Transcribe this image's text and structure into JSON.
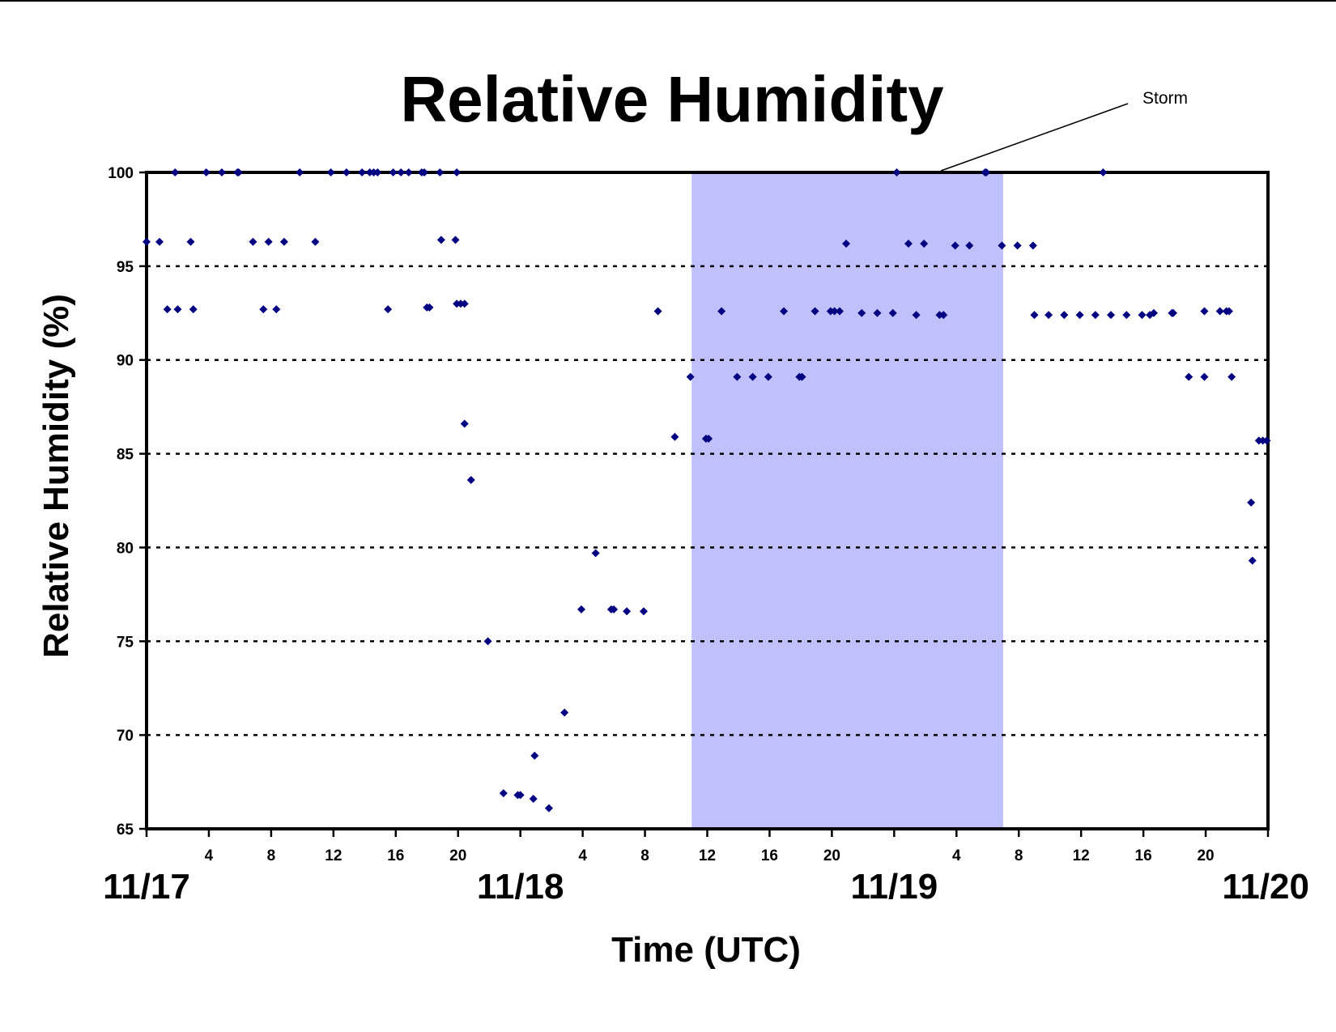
{
  "chart_data": {
    "type": "scatter",
    "title": "Relative Humidity",
    "xlabel": "Time (UTC)",
    "ylabel": "Relative Humidity (%)",
    "xlim": [
      "11/17 00:00",
      "11/20 00:00"
    ],
    "ylim": [
      65,
      100
    ],
    "yticks": [
      65,
      70,
      75,
      80,
      85,
      90,
      95,
      100
    ],
    "grid": "horizontal dotted at 70, 75, 80, 85, 90, 95",
    "x_hour_ticks": [
      {
        "x": "11/17 04:00",
        "label": "4"
      },
      {
        "x": "11/17 08:00",
        "label": "8"
      },
      {
        "x": "11/17 12:00",
        "label": "12"
      },
      {
        "x": "11/17 16:00",
        "label": "16"
      },
      {
        "x": "11/17 20:00",
        "label": "20"
      },
      {
        "x": "11/18 04:00",
        "label": "4"
      },
      {
        "x": "11/18 08:00",
        "label": "8"
      },
      {
        "x": "11/18 12:00",
        "label": "12"
      },
      {
        "x": "11/18 16:00",
        "label": "16"
      },
      {
        "x": "11/18 20:00",
        "label": "20"
      },
      {
        "x": "11/19 04:00",
        "label": "4"
      },
      {
        "x": "11/19 08:00",
        "label": "8"
      },
      {
        "x": "11/19 12:00",
        "label": "12"
      },
      {
        "x": "11/19 16:00",
        "label": "16"
      },
      {
        "x": "11/19 20:00",
        "label": "20"
      }
    ],
    "day_labels": [
      {
        "x": "11/17 00:00",
        "label": "11/17"
      },
      {
        "x": "11/18 00:00",
        "label": "11/18"
      },
      {
        "x": "11/19 00:00",
        "label": "11/19"
      },
      {
        "x": "11/20 00:00",
        "label": "11/20"
      }
    ],
    "shaded_region": {
      "start": "11/18 11:00",
      "end": "11/19 07:00",
      "color": "#c0c0fc"
    },
    "annotation": {
      "text": "Storm",
      "x": "11/19 03:00",
      "y": 100
    },
    "marker_color": "#000080",
    "series": [
      {
        "points": [
          [
            "11/17 00:00",
            96.3
          ],
          [
            "11/17 00:50",
            96.3
          ],
          [
            "11/17 01:20",
            92.7
          ],
          [
            "11/17 01:50",
            100
          ],
          [
            "11/17 02:00",
            92.7
          ],
          [
            "11/17 02:50",
            96.3
          ],
          [
            "11/17 03:00",
            92.7
          ],
          [
            "11/17 03:50",
            100
          ],
          [
            "11/17 04:50",
            100
          ],
          [
            "11/17 05:50",
            100
          ],
          [
            "11/17 05:55",
            100
          ],
          [
            "11/17 06:50",
            96.3
          ],
          [
            "11/17 07:30",
            92.7
          ],
          [
            "11/17 07:50",
            96.3
          ],
          [
            "11/17 08:20",
            92.7
          ],
          [
            "11/17 08:50",
            96.3
          ],
          [
            "11/17 09:50",
            100
          ],
          [
            "11/17 10:50",
            96.3
          ],
          [
            "11/17 11:50",
            100
          ],
          [
            "11/17 12:50",
            100
          ],
          [
            "11/17 13:50",
            100
          ],
          [
            "11/17 14:20",
            100
          ],
          [
            "11/17 14:35",
            100
          ],
          [
            "11/17 14:50",
            100
          ],
          [
            "11/17 15:30",
            92.7
          ],
          [
            "11/17 15:50",
            100
          ],
          [
            "11/17 16:20",
            100
          ],
          [
            "11/17 16:50",
            100
          ],
          [
            "11/17 17:40",
            100
          ],
          [
            "11/17 17:50",
            100
          ],
          [
            "11/17 18:00",
            92.8
          ],
          [
            "11/17 18:10",
            92.8
          ],
          [
            "11/17 18:50",
            100
          ],
          [
            "11/17 18:55",
            96.4
          ],
          [
            "11/17 19:50",
            96.4
          ],
          [
            "11/17 19:55",
            100
          ],
          [
            "11/17 19:55",
            93.0
          ],
          [
            "11/17 20:10",
            93.0
          ],
          [
            "11/17 20:25",
            93.0
          ],
          [
            "11/17 20:25",
            86.6
          ],
          [
            "11/17 20:50",
            83.6
          ],
          [
            "11/17 21:55",
            75.0
          ],
          [
            "11/17 22:55",
            66.9
          ],
          [
            "11/17 23:50",
            66.8
          ],
          [
            "11/18 00:00",
            66.8
          ],
          [
            "11/18 00:50",
            66.6
          ],
          [
            "11/18 00:55",
            68.9
          ],
          [
            "11/18 01:50",
            66.1
          ],
          [
            "11/18 02:50",
            71.2
          ],
          [
            "11/18 03:55",
            76.7
          ],
          [
            "11/18 04:50",
            79.7
          ],
          [
            "11/18 05:50",
            76.7
          ],
          [
            "11/18 06:00",
            76.7
          ],
          [
            "11/18 06:50",
            76.6
          ],
          [
            "11/18 07:55",
            76.6
          ],
          [
            "11/18 08:50",
            92.6
          ],
          [
            "11/18 09:55",
            85.9
          ],
          [
            "11/18 10:55",
            89.1
          ],
          [
            "11/18 11:55",
            85.8
          ],
          [
            "11/18 12:05",
            85.8
          ],
          [
            "11/18 12:55",
            92.6
          ],
          [
            "11/18 13:55",
            89.1
          ],
          [
            "11/18 14:55",
            89.1
          ],
          [
            "11/18 15:55",
            89.1
          ],
          [
            "11/18 16:55",
            92.6
          ],
          [
            "11/18 17:55",
            89.1
          ],
          [
            "11/18 18:05",
            89.1
          ],
          [
            "11/18 18:55",
            92.6
          ],
          [
            "11/18 19:55",
            92.6
          ],
          [
            "11/18 20:10",
            92.6
          ],
          [
            "11/18 20:30",
            92.6
          ],
          [
            "11/18 20:55",
            96.2
          ],
          [
            "11/18 21:55",
            92.5
          ],
          [
            "11/18 22:55",
            92.5
          ],
          [
            "11/18 23:55",
            92.5
          ],
          [
            "11/19 00:10",
            100
          ],
          [
            "11/19 00:55",
            96.2
          ],
          [
            "11/19 01:25",
            92.4
          ],
          [
            "11/19 01:55",
            96.2
          ],
          [
            "11/19 02:55",
            92.4
          ],
          [
            "11/19 03:10",
            92.4
          ],
          [
            "11/19 03:55",
            96.1
          ],
          [
            "11/19 04:50",
            96.1
          ],
          [
            "11/19 05:50",
            100
          ],
          [
            "11/19 05:55",
            100
          ],
          [
            "11/19 06:55",
            96.1
          ],
          [
            "11/19 07:55",
            96.1
          ],
          [
            "11/19 08:55",
            96.1
          ],
          [
            "11/19 09:00",
            92.4
          ],
          [
            "11/19 09:55",
            92.4
          ],
          [
            "11/19 10:55",
            92.4
          ],
          [
            "11/19 11:55",
            92.4
          ],
          [
            "11/19 12:55",
            92.4
          ],
          [
            "11/19 13:25",
            100
          ],
          [
            "11/19 13:55",
            92.4
          ],
          [
            "11/19 14:55",
            92.4
          ],
          [
            "11/19 15:55",
            92.4
          ],
          [
            "11/19 16:25",
            92.4
          ],
          [
            "11/19 16:40",
            92.5
          ],
          [
            "11/19 17:50",
            92.5
          ],
          [
            "11/19 17:55",
            92.5
          ],
          [
            "11/19 18:55",
            89.1
          ],
          [
            "11/19 19:55",
            92.6
          ],
          [
            "11/19 19:55",
            89.1
          ],
          [
            "11/19 20:55",
            92.6
          ],
          [
            "11/19 21:20",
            92.6
          ],
          [
            "11/19 21:30",
            92.6
          ],
          [
            "11/19 21:40",
            89.1
          ],
          [
            "11/19 22:55",
            82.4
          ],
          [
            "11/19 23:00",
            79.3
          ],
          [
            "11/19 23:25",
            85.7
          ],
          [
            "11/19 23:40",
            85.7
          ],
          [
            "11/19 23:55",
            85.7
          ]
        ]
      }
    ]
  }
}
